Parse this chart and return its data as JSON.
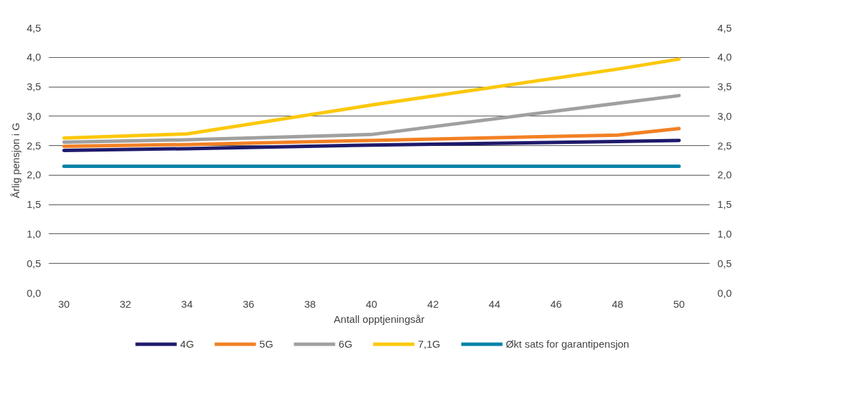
{
  "chart_data": {
    "type": "line",
    "xlabel": "Antall opptjeningsår",
    "ylabel": "Årlig pensjon i G",
    "x": [
      30,
      34,
      40,
      48,
      50
    ],
    "series": [
      {
        "name": "4G",
        "color": "#1f1a6b",
        "values": [
          2.42,
          2.45,
          2.51,
          2.57,
          2.59
        ]
      },
      {
        "name": "5G",
        "color": "#f28125",
        "values": [
          2.49,
          2.52,
          2.59,
          2.68,
          2.79
        ]
      },
      {
        "name": "6G",
        "color": "#a0a0a0",
        "values": [
          2.56,
          2.6,
          2.69,
          3.22,
          3.35
        ]
      },
      {
        "name": "7,1G",
        "color": "#fcc80c",
        "values": [
          2.63,
          2.7,
          3.19,
          3.8,
          3.97
        ]
      },
      {
        "name": "Økt sats for garantipensjon",
        "color": "#0683a8",
        "values": [
          2.15,
          2.15,
          2.15,
          2.15,
          2.15
        ]
      }
    ],
    "xlim": [
      29.5,
      51
    ],
    "xticks": [
      30,
      32,
      34,
      36,
      38,
      40,
      42,
      44,
      46,
      48,
      50
    ],
    "ylim": [
      0,
      4.5
    ],
    "yticks": [
      {
        "value": 0,
        "label": "0,0"
      },
      {
        "value": 0.5,
        "label": "0,5"
      },
      {
        "value": 1,
        "label": "1,0"
      },
      {
        "value": 1.5,
        "label": "1,5"
      },
      {
        "value": 2,
        "label": "2,0"
      },
      {
        "value": 2.5,
        "label": "2,5"
      },
      {
        "value": 3,
        "label": "3,0"
      },
      {
        "value": 3.5,
        "label": "3,5"
      },
      {
        "value": 4,
        "label": "4,0"
      },
      {
        "value": 4.5,
        "label": "4,5"
      }
    ],
    "y2lim": [
      0,
      4.5
    ],
    "y2ticks": [
      {
        "value": 0,
        "label": "0,0"
      },
      {
        "value": 0.5,
        "label": "0,5"
      },
      {
        "value": 1,
        "label": "1,0"
      },
      {
        "value": 1.5,
        "label": "1,5"
      },
      {
        "value": 2,
        "label": "2,0"
      },
      {
        "value": 2.5,
        "label": "2,5"
      },
      {
        "value": 3,
        "label": "3,0"
      },
      {
        "value": 3.5,
        "label": "3,5"
      },
      {
        "value": 4,
        "label": "4,0"
      },
      {
        "value": 4.5,
        "label": "4,5"
      }
    ],
    "grid": "y",
    "legend": "bottom",
    "line_style": "solid",
    "marker": "none"
  }
}
